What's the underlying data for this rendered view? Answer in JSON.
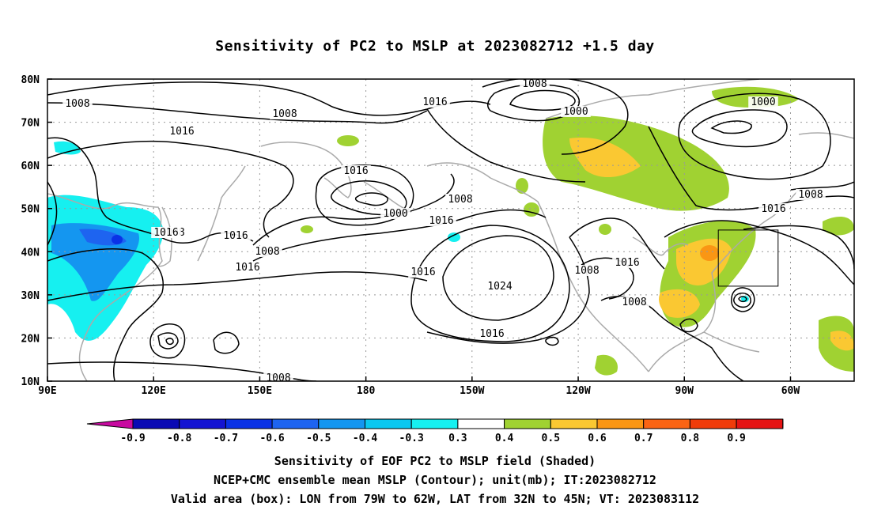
{
  "title": "Sensitivity of PC2 to MSLP at 2023082712 +1.5 day",
  "lat_ticks": [
    "80N",
    "70N",
    "60N",
    "50N",
    "40N",
    "30N",
    "20N",
    "10N"
  ],
  "lon_ticks": [
    "90E",
    "120E",
    "150E",
    "180",
    "150W",
    "120W",
    "90W",
    "60W"
  ],
  "contour_labels": [
    {
      "text": "1008"
    },
    {
      "text": "1008"
    },
    {
      "text": "1016"
    },
    {
      "text": "1016"
    },
    {
      "text": "1008"
    },
    {
      "text": "1000"
    },
    {
      "text": "1016"
    },
    {
      "text": "1000"
    },
    {
      "text": "1008"
    },
    {
      "text": "1000"
    },
    {
      "text": "1008"
    },
    {
      "text": "1016"
    },
    {
      "text": "1008"
    },
    {
      "text": "1016"
    },
    {
      "text": "1016"
    },
    {
      "text": "1008"
    },
    {
      "text": "1016"
    },
    {
      "text": "1016"
    },
    {
      "text": "1024"
    },
    {
      "text": "1016"
    },
    {
      "text": "1008"
    },
    {
      "text": "1016"
    },
    {
      "text": "1008"
    },
    {
      "text": "1016"
    },
    {
      "text": "1008"
    }
  ],
  "colorbar": {
    "labels": [
      "-0.9",
      "-0.8",
      "-0.7",
      "-0.6",
      "-0.5",
      "-0.4",
      "-0.3",
      "0.3",
      "0.4",
      "0.5",
      "0.6",
      "0.7",
      "0.8",
      "0.9"
    ],
    "colors": [
      "#0a0ab4",
      "#1414d2",
      "#0a32e6",
      "#1e64f0",
      "#1496f0",
      "#0ac8f0",
      "#16f0f0",
      "#ffffff",
      "#a0d232",
      "#fac832",
      "#fa9614",
      "#fa6414",
      "#f03c0a",
      "#e61414"
    ],
    "left_arrow_color": "#c80aa0",
    "right_arrow_color": "#f5a0c8"
  },
  "captions": [
    "Sensitivity of EOF PC2 to MSLP field (Shaded)",
    "NCEP+CMC ensemble mean MSLP (Contour); unit(mb); IT:2023082712",
    "Valid area (box): LON from 79W to 62W, LAT from 32N to 45N; VT: 2023083112"
  ]
}
